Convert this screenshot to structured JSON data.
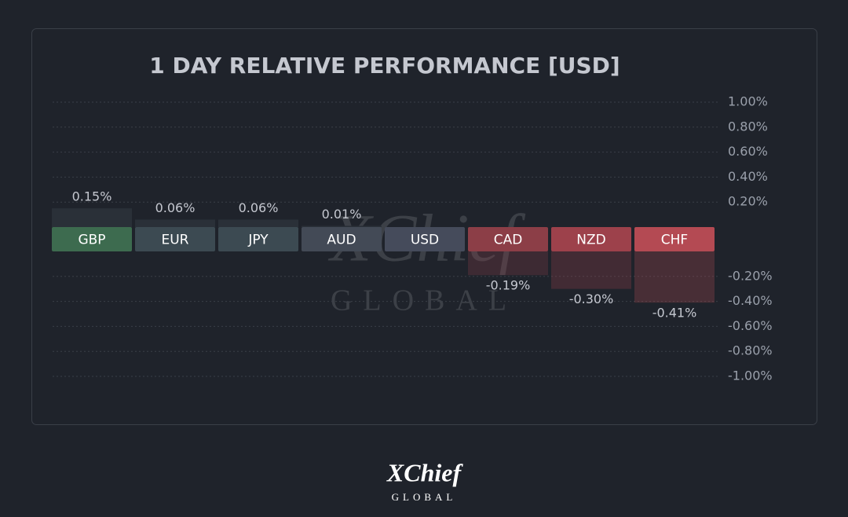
{
  "chart_data": {
    "type": "bar",
    "title": "1 DAY RELATIVE PERFORMANCE  [USD]",
    "categories": [
      "GBP",
      "EUR",
      "JPY",
      "AUD",
      "USD",
      "CAD",
      "NZD",
      "CHF"
    ],
    "values": [
      0.15,
      0.06,
      0.06,
      0.01,
      null,
      -0.19,
      -0.3,
      -0.41
    ],
    "value_labels": [
      "0.15%",
      "0.06%",
      "0.06%",
      "0.01%",
      null,
      "-0.19%",
      "-0.30%",
      "-0.41%"
    ],
    "colors": [
      "#3d6b4f",
      "#3c4a52",
      "#3c4a52",
      "#434a56",
      "#454b5b",
      "#8c3e47",
      "#9d414b",
      "#b44a53"
    ],
    "ylim": [
      -1,
      1
    ],
    "yticks": [
      {
        "value": 1,
        "label": "1.00%"
      },
      {
        "value": 0.8,
        "label": "0.80%"
      },
      {
        "value": 0.6,
        "label": "0.60%"
      },
      {
        "value": 0.4,
        "label": "0.40%"
      },
      {
        "value": 0.2,
        "label": "0.20%"
      },
      {
        "value": -0.2,
        "label": "-0.20%"
      },
      {
        "value": -0.4,
        "label": "-0.40%"
      },
      {
        "value": -0.6,
        "label": "-0.60%"
      },
      {
        "value": -0.8,
        "label": "-0.80%"
      },
      {
        "value": -1,
        "label": "-1.00%"
      }
    ],
    "grid": true
  },
  "watermark": {
    "name": "XChief",
    "tagline": "GLOBAL"
  },
  "logo": {
    "name": "XChief",
    "tagline": "GLOBAL"
  }
}
